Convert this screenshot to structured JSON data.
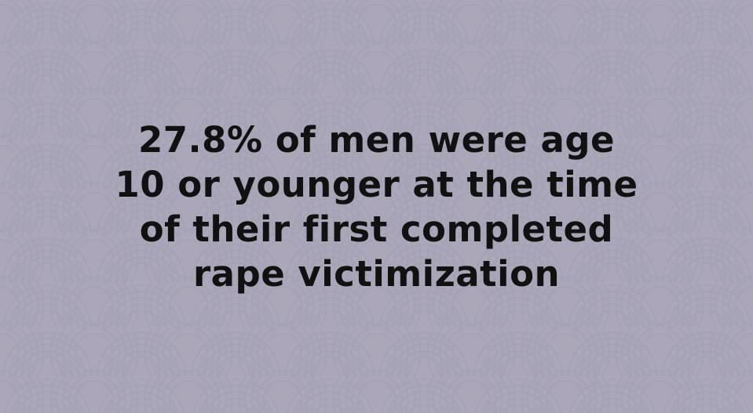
{
  "background_color": "#aba7b9",
  "pattern_color": "#a29eb1",
  "text_color": "#111111",
  "statement": {
    "lines": [
      "27.8% of men were age",
      "10 or younger at the time",
      "of their first completed",
      "rape victimization"
    ]
  }
}
